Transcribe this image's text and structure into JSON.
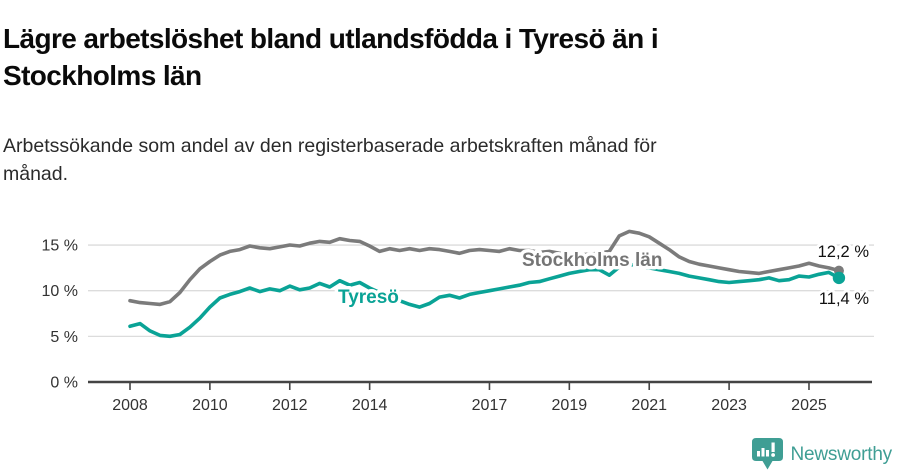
{
  "header": {
    "title": "Lägre arbetslöshet bland utlandsfödda i Tyresö än i Stockholms län",
    "subtitle": "Arbetssökande som andel av den registerbaserade arbetskraften månad för månad."
  },
  "chart_data": {
    "type": "line",
    "title": "Lägre arbetslöshet bland utlandsfödda i Tyresö än i Stockholms län",
    "subtitle": "Arbetssökande som andel av den registerbaserade arbetskraften månad för månad.",
    "x_start": 2008,
    "x_step": 0.25,
    "x_ticks": [
      "2008",
      "2010",
      "2012",
      "2014",
      "2017",
      "2019",
      "2021",
      "2023",
      "2025"
    ],
    "y_ticks": [
      {
        "value": 0,
        "label": "0 %"
      },
      {
        "value": 5,
        "label": "5 %"
      },
      {
        "value": 10,
        "label": "10 %"
      },
      {
        "value": 15,
        "label": "15 %"
      }
    ],
    "ylim": [
      0,
      17.5
    ],
    "grid": "horizontal",
    "legend_position": "inline",
    "series": [
      {
        "name": "Stockholms län",
        "color": "#7b7b7b",
        "end_label": "12,2 %",
        "values": [
          8.9,
          8.7,
          8.6,
          8.5,
          8.8,
          9.8,
          11.2,
          12.4,
          13.2,
          13.9,
          14.3,
          14.5,
          14.9,
          14.7,
          14.6,
          14.8,
          15.0,
          14.9,
          15.2,
          15.4,
          15.3,
          15.7,
          15.5,
          15.4,
          14.9,
          14.3,
          14.6,
          14.4,
          14.6,
          14.4,
          14.6,
          14.5,
          14.3,
          14.1,
          14.4,
          14.5,
          14.4,
          14.3,
          14.6,
          14.4,
          14.4,
          14.2,
          14.3,
          14.1,
          14.0,
          13.9,
          14.0,
          14.1,
          14.3,
          16.0,
          16.5,
          16.3,
          15.9,
          15.2,
          14.5,
          13.7,
          13.2,
          12.9,
          12.7,
          12.5,
          12.3,
          12.1,
          12.0,
          11.9,
          12.1,
          12.3,
          12.5,
          12.7,
          13.0,
          12.7,
          12.5,
          12.2
        ]
      },
      {
        "name": "Tyresö",
        "color": "#0aa396",
        "end_label": "11,4 %",
        "values": [
          6.1,
          6.4,
          5.6,
          5.1,
          5.0,
          5.2,
          6.0,
          7.0,
          8.2,
          9.2,
          9.6,
          9.9,
          10.3,
          9.9,
          10.2,
          10.0,
          10.5,
          10.1,
          10.3,
          10.8,
          10.4,
          11.1,
          10.6,
          10.9,
          10.3,
          9.8,
          9.4,
          8.9,
          8.5,
          8.2,
          8.6,
          9.3,
          9.5,
          9.2,
          9.6,
          9.8,
          10.0,
          10.2,
          10.4,
          10.6,
          10.9,
          11.0,
          11.3,
          11.6,
          11.9,
          12.1,
          12.3,
          12.3,
          11.7,
          12.6,
          12.9,
          12.7,
          12.5,
          12.3,
          12.1,
          11.9,
          11.6,
          11.4,
          11.2,
          11.0,
          10.9,
          11.0,
          11.1,
          11.2,
          11.4,
          11.1,
          11.2,
          11.6,
          11.5,
          11.8,
          12.0,
          11.4
        ]
      }
    ]
  },
  "footer": {
    "brand": "Newsworthy"
  },
  "colors": {
    "series_gray": "#7b7b7b",
    "series_teal": "#0aa396",
    "brand_teal": "#3f9e94",
    "grid": "#dcdcdc",
    "axis": "#444444",
    "text": "#111111"
  }
}
